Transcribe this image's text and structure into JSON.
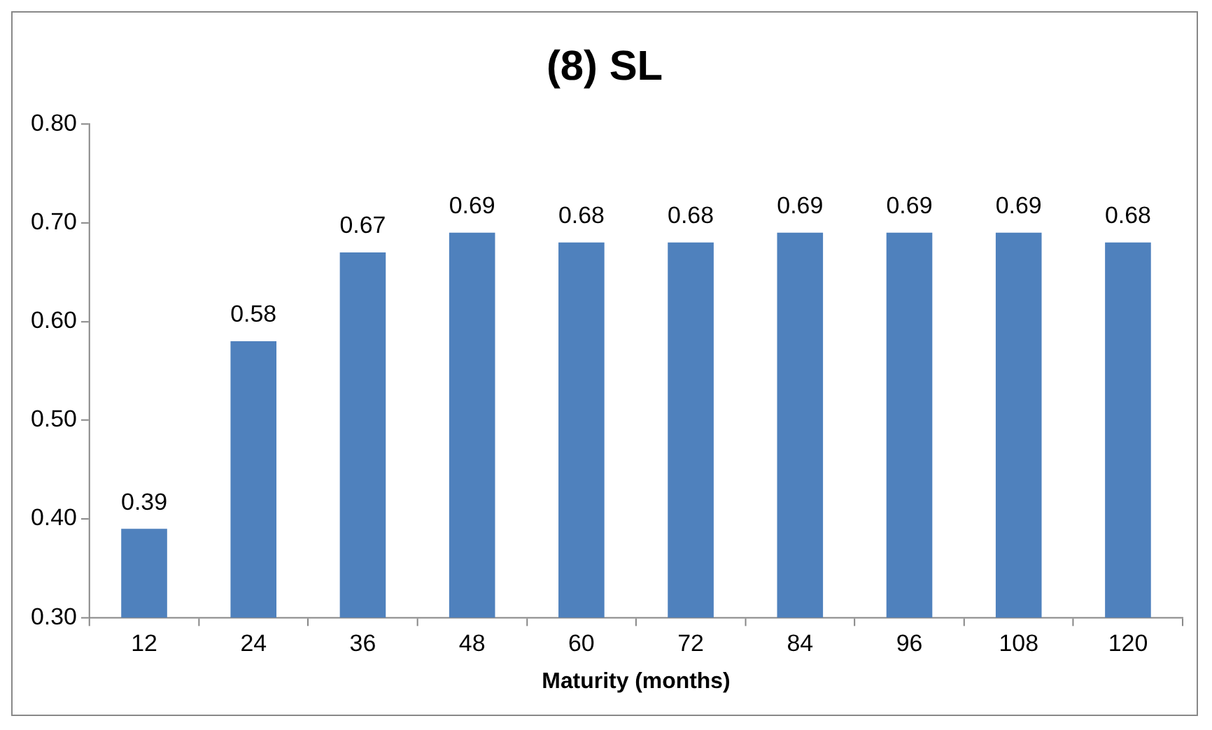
{
  "chart_data": {
    "type": "bar",
    "title": "(8) SL",
    "xlabel": "Maturity (months)",
    "categories": [
      "12",
      "24",
      "36",
      "48",
      "60",
      "72",
      "84",
      "96",
      "108",
      "120"
    ],
    "values": [
      0.39,
      0.58,
      0.67,
      0.69,
      0.68,
      0.68,
      0.69,
      0.69,
      0.69,
      0.68
    ],
    "color": "#4f81bd",
    "ylim": [
      0.3,
      0.8
    ],
    "yticks": [
      {
        "value": 0.3,
        "label": "0.30"
      },
      {
        "value": 0.4,
        "label": "0.40"
      },
      {
        "value": 0.5,
        "label": "0.50"
      },
      {
        "value": 0.6,
        "label": "0.60"
      },
      {
        "value": 0.7,
        "label": "0.70"
      },
      {
        "value": 0.8,
        "label": "0.80"
      }
    ],
    "data_labels": true,
    "grid": false,
    "legend": false
  }
}
